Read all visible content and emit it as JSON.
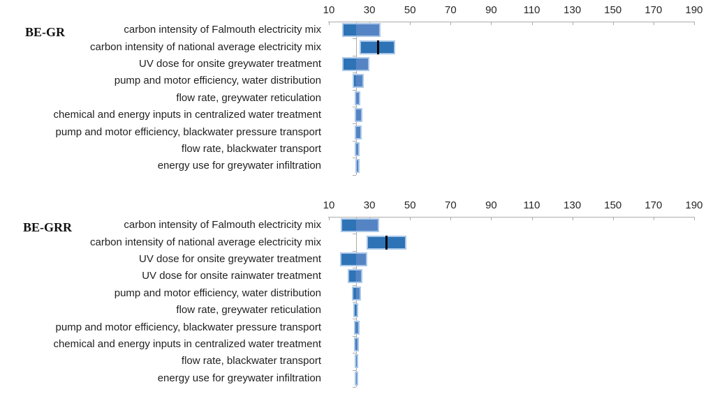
{
  "figure": {
    "description": "Sensitivity tornado charts for two scenarios",
    "background": "#ffffff"
  },
  "colors": {
    "bar_dark": "#2e73b5",
    "bar_light": "#5584c4",
    "bar_border": "#a9c7e9",
    "axis": "#ababab",
    "marker": "#000000",
    "text": "#1f1f1f"
  },
  "chart_data": [
    {
      "type": "bar",
      "variant": "tornado",
      "title": "BE-GR",
      "xlabel": "",
      "ylabel": "",
      "legend": "none",
      "grid": "off",
      "x_axis": {
        "min": 10,
        "max": 190,
        "tick_interval": 20,
        "ticks": [
          10,
          30,
          50,
          70,
          90,
          110,
          130,
          150,
          170,
          190
        ]
      },
      "baseline": 23.4,
      "rows": [
        {
          "label": "carbon intensity of Falmouth electricity mix",
          "low": 16.6,
          "high": 35.6
        },
        {
          "label": "carbon intensity of national average electricity mix",
          "low": 25.2,
          "high": 42.7,
          "marker": 34.1
        },
        {
          "label": "UV dose for onsite greywater treatment",
          "low": 16.5,
          "high": 30.0
        },
        {
          "label": "pump and motor efficiency, water distribution",
          "low": 21.8,
          "high": 27.1
        },
        {
          "label": "flow rate, greywater reticulation",
          "low": 22.9,
          "high": 25.5
        },
        {
          "label": "chemical and energy inputs in centralized water treatment",
          "low": 22.9,
          "high": 26.4
        },
        {
          "label": "pump and motor efficiency, blackwater pressure transport",
          "low": 22.9,
          "high": 26.1
        },
        {
          "label": "flow rate, blackwater transport",
          "low": 22.9,
          "high": 25.2
        },
        {
          "label": "energy use for greywater infiltration",
          "low": 23.0,
          "high": 25.0
        }
      ]
    },
    {
      "type": "bar",
      "variant": "tornado",
      "title": "BE-GRR",
      "xlabel": "",
      "ylabel": "",
      "legend": "none",
      "grid": "off",
      "x_axis": {
        "min": 10,
        "max": 190,
        "tick_interval": 20,
        "ticks": [
          10,
          30,
          50,
          70,
          90,
          110,
          130,
          150,
          170,
          190
        ]
      },
      "baseline": 23.4,
      "rows": [
        {
          "label": "carbon intensity of Falmouth electricity mix",
          "low": 15.9,
          "high": 34.8
        },
        {
          "label": "carbon intensity of national average electricity mix",
          "low": 28.5,
          "high": 48.2,
          "marker": 38.5
        },
        {
          "label": "UV dose for onsite greywater treatment",
          "low": 15.5,
          "high": 28.8
        },
        {
          "label": "UV dose for onsite rainwater treatment",
          "low": 19.4,
          "high": 26.6
        },
        {
          "label": "pump and motor efficiency, water distribution",
          "low": 21.4,
          "high": 25.7
        },
        {
          "label": "flow rate, greywater reticulation",
          "low": 22.0,
          "high": 24.6
        },
        {
          "label": "pump and motor efficiency, blackwater pressure transport",
          "low": 22.3,
          "high": 25.2
        },
        {
          "label": "chemical and energy inputs in centralized water treatment",
          "low": 22.3,
          "high": 24.8
        },
        {
          "label": "flow rate, blackwater transport",
          "low": 22.6,
          "high": 24.6
        },
        {
          "label": "energy use for greywater infiltration",
          "low": 22.9,
          "high": 24.3
        }
      ]
    }
  ]
}
